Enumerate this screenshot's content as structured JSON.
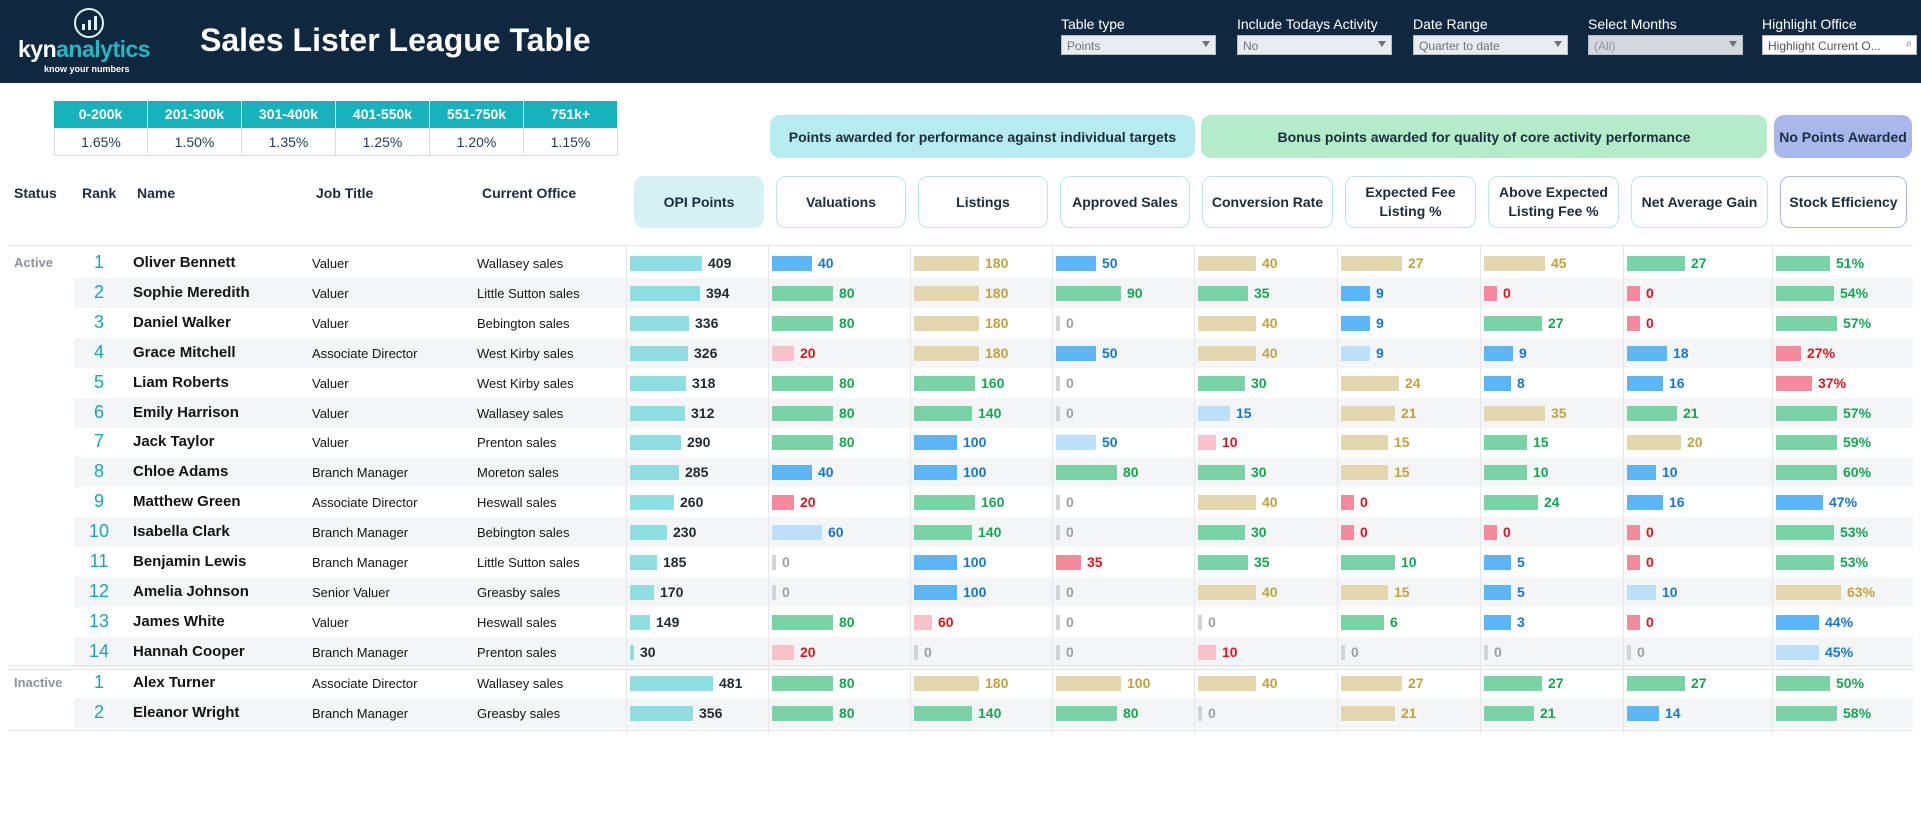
{
  "app": {
    "logo": {
      "prefix": "kyn",
      "highlight": "analytics",
      "tagline": "know your numbers"
    },
    "title": "Sales Lister League Table"
  },
  "filters": [
    {
      "label": "Table type",
      "value": "Points",
      "state": "normal"
    },
    {
      "label": "Include Todays Activity",
      "value": "No",
      "state": "normal"
    },
    {
      "label": "Date Range",
      "value": "Quarter to date",
      "state": "normal"
    },
    {
      "label": "Select Months",
      "value": "(All)",
      "state": "disabled"
    },
    {
      "label": "Highlight Office",
      "value": "Highlight Current O...",
      "state": "search"
    }
  ],
  "tiers": [
    {
      "range": "0-200k",
      "rate": "1.65%"
    },
    {
      "range": "201-300k",
      "rate": "1.50%"
    },
    {
      "range": "301-400k",
      "rate": "1.35%"
    },
    {
      "range": "401-550k",
      "rate": "1.25%"
    },
    {
      "range": "551-750k",
      "rate": "1.20%"
    },
    {
      "range": "751k+",
      "rate": "1.15%"
    }
  ],
  "legend": [
    {
      "label": "Points awarded for performance against individual targets",
      "color": "#b6ebef"
    },
    {
      "label": "Bonus points awarded for quality of core activity performance",
      "color": "#b4ecc9"
    },
    {
      "label": "No Points Awarded",
      "color": "#a9b7ea"
    }
  ],
  "columns": {
    "status": "Status",
    "rank": "Rank",
    "name": "Name",
    "job": "Job Title",
    "office": "Current Office",
    "metrics": [
      "OPI Points",
      "Valuations",
      "Listings",
      "Approved Sales",
      "Conversion Rate",
      "Expected Fee\nListing %",
      "Above Expected\nListing Fee %",
      "Net Average Gain",
      "Stock Efficiency"
    ]
  },
  "colors": {
    "teal": "#8fdfe2",
    "green": "#79d3a5",
    "tan": "#e5d7ad",
    "blue": "#5cb5f5",
    "lightblue": "#bce0fa",
    "red": "#f48a9c",
    "lightred": "#f9c1c9",
    "grey": "#d2d4d6",
    "txt_green": "#15a650",
    "txt_tan": "#c3a23a",
    "txt_blue": "#1478d2",
    "txt_red": "#e4141e",
    "txt_grey": "#9aa0a6",
    "txt_dark": "#1f2a33"
  },
  "sections": [
    {
      "status": "Active",
      "rows": [
        {
          "rank": "1",
          "name": "Oliver Bennett",
          "job": "Valuer",
          "office": "Wallasey sales",
          "m": [
            [
              "409",
              "teal",
              0.85
            ],
            [
              "40",
              "blue",
              0.55
            ],
            [
              "180",
              "tan",
              0.9
            ],
            [
              "50",
              "blue",
              0.55
            ],
            [
              "40",
              "tan",
              0.8
            ],
            [
              "27",
              "tan",
              0.85
            ],
            [
              "45",
              "tan",
              0.85
            ],
            [
              "27",
              "green",
              0.8
            ],
            [
              "51%",
              "green",
              0.75
            ]
          ]
        },
        {
          "rank": "2",
          "name": "Sophie Meredith",
          "job": "Valuer",
          "office": "Little Sutton sales",
          "m": [
            [
              "394",
              "teal",
              0.82
            ],
            [
              "80",
              "green",
              0.85
            ],
            [
              "180",
              "tan",
              0.9
            ],
            [
              "90",
              "green",
              0.9
            ],
            [
              "35",
              "green",
              0.7
            ],
            [
              "9",
              "blue",
              0.4
            ],
            [
              "0",
              "red",
              0.18
            ],
            [
              "0",
              "red",
              0.18
            ],
            [
              "54%",
              "green",
              0.8
            ]
          ]
        },
        {
          "rank": "3",
          "name": "Daniel Walker",
          "job": "Valuer",
          "office": "Bebington sales",
          "m": [
            [
              "336",
              "teal",
              0.7
            ],
            [
              "80",
              "green",
              0.85
            ],
            [
              "180",
              "tan",
              0.9
            ],
            [
              "0",
              "grey",
              0.05
            ],
            [
              "40",
              "tan",
              0.8
            ],
            [
              "9",
              "blue",
              0.4
            ],
            [
              "27",
              "green",
              0.8
            ],
            [
              "0",
              "red",
              0.18
            ],
            [
              "57%",
              "green",
              0.85
            ]
          ]
        },
        {
          "rank": "4",
          "name": "Grace Mitchell",
          "job": "Associate Director",
          "office": "West Kirby sales",
          "m": [
            [
              "326",
              "teal",
              0.68
            ],
            [
              "20",
              "lightred",
              0.3
            ],
            [
              "180",
              "tan",
              0.9
            ],
            [
              "50",
              "blue",
              0.55
            ],
            [
              "40",
              "tan",
              0.8
            ],
            [
              "9",
              "lightblue",
              0.4
            ],
            [
              "9",
              "blue",
              0.4
            ],
            [
              "18",
              "blue",
              0.55
            ],
            [
              "27%",
              "red",
              0.35
            ]
          ]
        },
        {
          "rank": "5",
          "name": "Liam Roberts",
          "job": "Valuer",
          "office": "West Kirby sales",
          "m": [
            [
              "318",
              "teal",
              0.66
            ],
            [
              "80",
              "green",
              0.85
            ],
            [
              "160",
              "green",
              0.85
            ],
            [
              "0",
              "grey",
              0.05
            ],
            [
              "30",
              "green",
              0.65
            ],
            [
              "24",
              "tan",
              0.8
            ],
            [
              "8",
              "blue",
              0.38
            ],
            [
              "16",
              "blue",
              0.5
            ],
            [
              "37%",
              "red",
              0.5
            ]
          ]
        },
        {
          "rank": "6",
          "name": "Emily Harrison",
          "job": "Valuer",
          "office": "Wallasey sales",
          "m": [
            [
              "312",
              "teal",
              0.65
            ],
            [
              "80",
              "green",
              0.85
            ],
            [
              "140",
              "green",
              0.8
            ],
            [
              "0",
              "grey",
              0.05
            ],
            [
              "15",
              "lightblue",
              0.45
            ],
            [
              "21",
              "tan",
              0.75
            ],
            [
              "35",
              "tan",
              0.85
            ],
            [
              "21",
              "green",
              0.7
            ],
            [
              "57%",
              "green",
              0.85
            ]
          ]
        },
        {
          "rank": "7",
          "name": "Jack Taylor",
          "job": "Valuer",
          "office": "Prenton sales",
          "m": [
            [
              "290",
              "teal",
              0.6
            ],
            [
              "80",
              "green",
              0.85
            ],
            [
              "100",
              "blue",
              0.6
            ],
            [
              "50",
              "lightblue",
              0.55
            ],
            [
              "10",
              "lightred",
              0.25
            ],
            [
              "15",
              "tan",
              0.65
            ],
            [
              "15",
              "green",
              0.6
            ],
            [
              "20",
              "tan",
              0.75
            ],
            [
              "59%",
              "green",
              0.85
            ]
          ]
        },
        {
          "rank": "8",
          "name": "Chloe Adams",
          "job": "Branch Manager",
          "office": "Moreton sales",
          "m": [
            [
              "285",
              "teal",
              0.58
            ],
            [
              "40",
              "blue",
              0.55
            ],
            [
              "100",
              "blue",
              0.6
            ],
            [
              "80",
              "green",
              0.85
            ],
            [
              "30",
              "green",
              0.65
            ],
            [
              "15",
              "tan",
              0.65
            ],
            [
              "10",
              "green",
              0.6
            ],
            [
              "10",
              "blue",
              0.4
            ],
            [
              "60%",
              "green",
              0.85
            ]
          ]
        },
        {
          "rank": "9",
          "name": "Matthew Green",
          "job": "Associate Director",
          "office": "Heswall sales",
          "m": [
            [
              "260",
              "teal",
              0.52
            ],
            [
              "20",
              "red",
              0.3
            ],
            [
              "160",
              "green",
              0.85
            ],
            [
              "0",
              "grey",
              0.05
            ],
            [
              "40",
              "tan",
              0.8
            ],
            [
              "0",
              "red",
              0.18
            ],
            [
              "24",
              "green",
              0.75
            ],
            [
              "16",
              "blue",
              0.5
            ],
            [
              "47%",
              "blue",
              0.65
            ]
          ]
        },
        {
          "rank": "10",
          "name": "Isabella Clark",
          "job": "Branch Manager",
          "office": "Bebington sales",
          "m": [
            [
              "230",
              "teal",
              0.44
            ],
            [
              "60",
              "lightblue",
              0.7
            ],
            [
              "140",
              "green",
              0.8
            ],
            [
              "0",
              "grey",
              0.05
            ],
            [
              "30",
              "green",
              0.65
            ],
            [
              "0",
              "red",
              0.18
            ],
            [
              "0",
              "red",
              0.18
            ],
            [
              "0",
              "red",
              0.18
            ],
            [
              "53%",
              "green",
              0.8
            ]
          ]
        },
        {
          "rank": "11",
          "name": "Benjamin Lewis",
          "job": "Branch Manager",
          "office": "Little Sutton sales",
          "m": [
            [
              "185",
              "teal",
              0.32
            ],
            [
              "0",
              "grey",
              0.05
            ],
            [
              "100",
              "blue",
              0.6
            ],
            [
              "35",
              "red",
              0.35
            ],
            [
              "35",
              "green",
              0.7
            ],
            [
              "10",
              "green",
              0.75
            ],
            [
              "5",
              "blue",
              0.38
            ],
            [
              "0",
              "red",
              0.18
            ],
            [
              "53%",
              "green",
              0.8
            ]
          ]
        },
        {
          "rank": "12",
          "name": "Amelia Johnson",
          "job": "Senior Valuer",
          "office": "Greasby sales",
          "m": [
            [
              "170",
              "teal",
              0.28
            ],
            [
              "0",
              "grey",
              0.05
            ],
            [
              "100",
              "blue",
              0.6
            ],
            [
              "0",
              "grey",
              0.05
            ],
            [
              "40",
              "tan",
              0.8
            ],
            [
              "15",
              "tan",
              0.65
            ],
            [
              "5",
              "blue",
              0.38
            ],
            [
              "10",
              "lightblue",
              0.4
            ],
            [
              "63%",
              "tan",
              0.9
            ]
          ]
        },
        {
          "rank": "13",
          "name": "James White",
          "job": "Valuer",
          "office": "Heswall sales",
          "m": [
            [
              "149",
              "teal",
              0.24
            ],
            [
              "80",
              "green",
              0.85
            ],
            [
              "60",
              "lightred",
              0.25
            ],
            [
              "0",
              "grey",
              0.05
            ],
            [
              "0",
              "grey",
              0.05
            ],
            [
              "6",
              "green",
              0.6
            ],
            [
              "3",
              "blue",
              0.38
            ],
            [
              "0",
              "red",
              0.18
            ],
            [
              "44%",
              "blue",
              0.6
            ]
          ]
        },
        {
          "rank": "14",
          "name": "Hannah Cooper",
          "job": "Branch Manager",
          "office": "Prenton sales",
          "m": [
            [
              "30",
              "teal",
              0.04
            ],
            [
              "20",
              "lightred",
              0.3
            ],
            [
              "0",
              "grey",
              0.05
            ],
            [
              "0",
              "grey",
              0.05
            ],
            [
              "10",
              "lightred",
              0.25
            ],
            [
              "0",
              "grey",
              0.05
            ],
            [
              "0",
              "grey",
              0.05
            ],
            [
              "0",
              "grey",
              0.05
            ],
            [
              "45%",
              "lightblue",
              0.6
            ]
          ]
        }
      ]
    },
    {
      "status": "Inactive",
      "rows": [
        {
          "rank": "1",
          "name": "Alex Turner",
          "job": "Associate Director",
          "office": "Wallasey sales",
          "m": [
            [
              "481",
              "teal",
              0.98
            ],
            [
              "80",
              "green",
              0.85
            ],
            [
              "180",
              "tan",
              0.9
            ],
            [
              "100",
              "tan",
              0.9
            ],
            [
              "40",
              "tan",
              0.8
            ],
            [
              "27",
              "tan",
              0.85
            ],
            [
              "27",
              "green",
              0.8
            ],
            [
              "27",
              "green",
              0.8
            ],
            [
              "50%",
              "green",
              0.75
            ]
          ]
        },
        {
          "rank": "2",
          "name": "Eleanor Wright",
          "job": "Branch Manager",
          "office": "Greasby sales",
          "m": [
            [
              "356",
              "teal",
              0.74
            ],
            [
              "80",
              "green",
              0.85
            ],
            [
              "140",
              "green",
              0.8
            ],
            [
              "80",
              "green",
              0.85
            ],
            [
              "0",
              "grey",
              0.05
            ],
            [
              "21",
              "tan",
              0.75
            ],
            [
              "21",
              "green",
              0.7
            ],
            [
              "14",
              "blue",
              0.45
            ],
            [
              "58%",
              "green",
              0.85
            ]
          ]
        }
      ]
    }
  ]
}
